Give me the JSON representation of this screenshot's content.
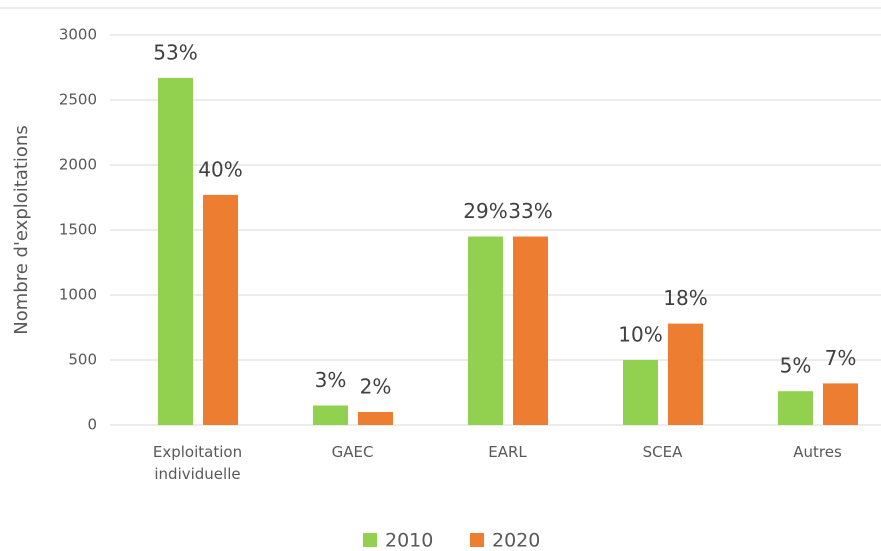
{
  "chart_data": {
    "type": "bar",
    "y_label": "Nombre d'exploitations",
    "categories": [
      "Exploitation\nindividuelle",
      "GAEC",
      "EARL",
      "SCEA",
      "Autres"
    ],
    "series": [
      {
        "name": "2010",
        "color": "#92d050",
        "values": [
          2670,
          150,
          1450,
          500,
          260
        ],
        "data_labels": [
          "53%",
          "3%",
          "29%",
          "10%",
          "5%"
        ]
      },
      {
        "name": "2020",
        "color": "#ed7d31",
        "values": [
          1770,
          100,
          1450,
          780,
          320
        ],
        "data_labels": [
          "40%",
          "2%",
          "33%",
          "18%",
          "7%"
        ]
      }
    ],
    "ylim": [
      0,
      3000
    ],
    "yticks": [
      0,
      500,
      1000,
      1500,
      2000,
      2500,
      3000
    ],
    "grid": true,
    "legend": "bottom"
  }
}
